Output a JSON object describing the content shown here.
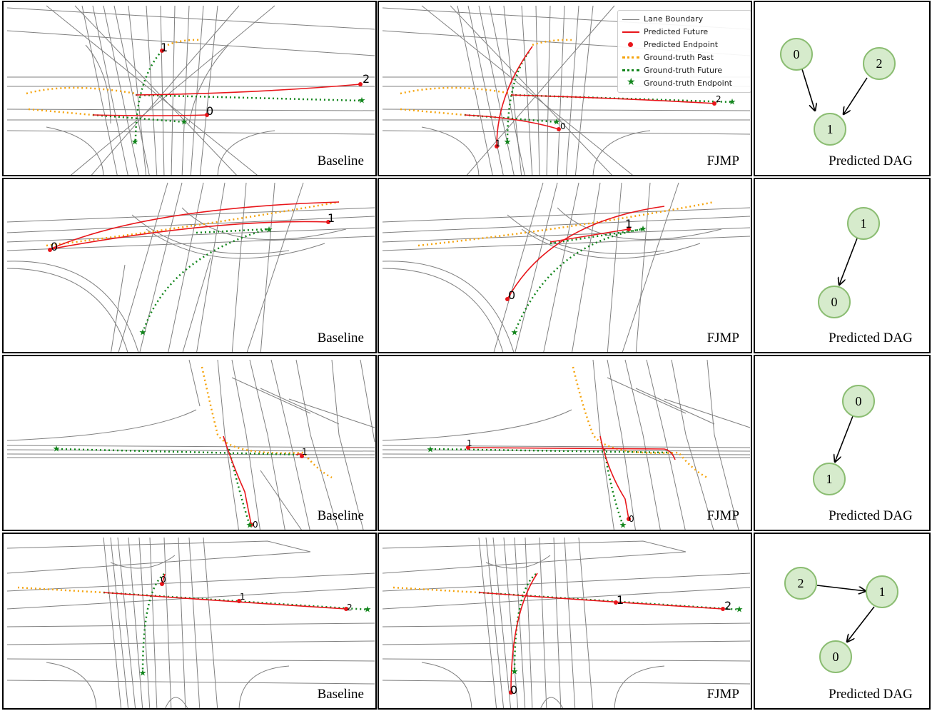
{
  "legend": {
    "lane_boundary": "Lane Boundary",
    "predicted_future": "Predicted Future",
    "predicted_endpoint": "Predicted Endpoint",
    "gt_past": "Ground-truth Past",
    "gt_future": "Ground-truth Future",
    "gt_endpoint": "Ground-truth Endpoint"
  },
  "colors": {
    "lane": "#808080",
    "pred": "#e8161b",
    "past": "#f5a40d",
    "future": "#12851c",
    "node_fill": "#d6ebcc",
    "node_stroke": "#8bbd72"
  },
  "labels": {
    "baseline": "Baseline",
    "fjmp": "FJMP",
    "dag": "Predicted DAG"
  },
  "rows": [
    {
      "agents": [
        "0",
        "1",
        "2"
      ],
      "edges": [
        [
          "0",
          "1"
        ],
        [
          "2",
          "1"
        ]
      ]
    },
    {
      "agents": [
        "0",
        "1"
      ],
      "edges": [
        [
          "1",
          "0"
        ]
      ]
    },
    {
      "agents": [
        "0",
        "1"
      ],
      "edges": [
        [
          "0",
          "1"
        ]
      ]
    },
    {
      "agents": [
        "0",
        "1",
        "2"
      ],
      "edges": [
        [
          "2",
          "1"
        ],
        [
          "1",
          "0"
        ]
      ]
    }
  ]
}
